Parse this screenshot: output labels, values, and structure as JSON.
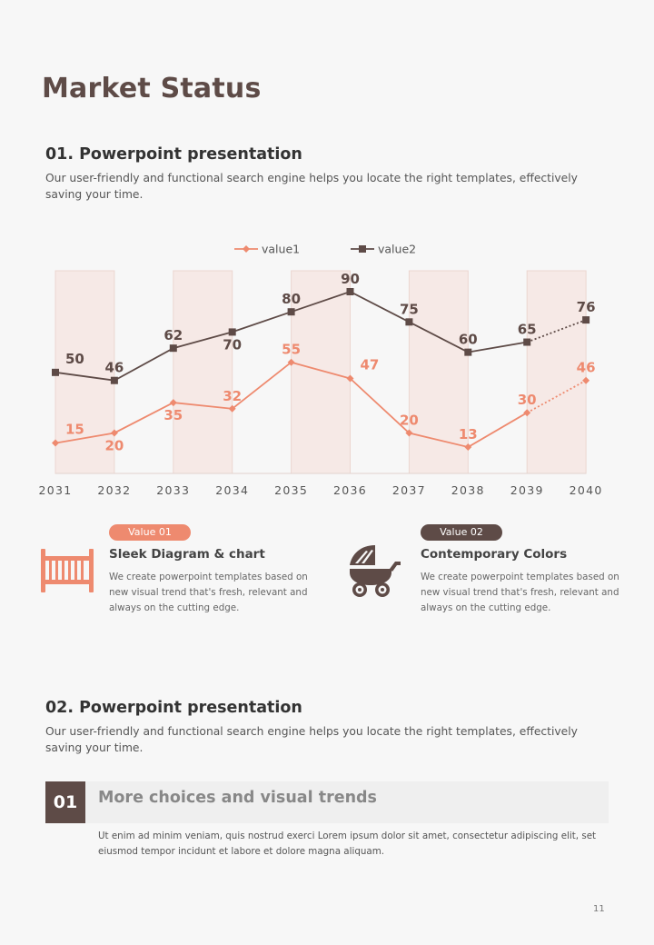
{
  "page": {
    "title": "Market Status",
    "number": "11"
  },
  "section1": {
    "title": "01. Powerpoint  presentation",
    "desc": "Our user-friendly  and functional search engine helps you locate the right templates,  effectively saving your time."
  },
  "chart_data": {
    "type": "line",
    "x": [
      "2031",
      "2032",
      "2033",
      "2034",
      "2035",
      "2036",
      "2037",
      "2038",
      "2039",
      "2040"
    ],
    "series": [
      {
        "name": "value1",
        "values": [
          15,
          20,
          35,
          32,
          55,
          47,
          20,
          13,
          30,
          46
        ],
        "color": "#ee8a6f",
        "last_segment_dotted": true
      },
      {
        "name": "value2",
        "values": [
          50,
          46,
          62,
          70,
          80,
          90,
          75,
          60,
          65,
          76
        ],
        "color": "#5e4b47",
        "last_segment_dotted": true
      }
    ],
    "legend": "top-center",
    "shaded_columns": [
      [
        2031,
        2032
      ],
      [
        2033,
        2034
      ],
      [
        2035,
        2036
      ],
      [
        2037,
        2038
      ],
      [
        2039,
        2040
      ]
    ],
    "grid": false
  },
  "cards": [
    {
      "pill": "Value 01",
      "pill_color": "#ee8a6f",
      "icon": "crib-icon",
      "title": "Sleek Diagram & chart",
      "text": "We create powerpoint templates based on new visual trend that's fresh, relevant and always on the cutting edge."
    },
    {
      "pill": "Value 02",
      "pill_color": "#5e4b47",
      "icon": "baby-stroller-icon",
      "title": "Contemporary Colors",
      "text": "We create powerpoint templates based on new visual trend that's fresh, relevant and always on the cutting edge."
    }
  ],
  "section2": {
    "title": "02. Powerpoint  presentation",
    "desc": "Our user-friendly  and functional search engine helps you locate the right templates,  effectively saving your time."
  },
  "feature": {
    "number": "01",
    "title": "More choices and visual trends",
    "text": "Ut enim ad minim veniam, quis nostrud exerci Lorem ipsum dolor sit amet, consectetur adipiscing elit, set eiusmod tempor incidunt et labore et dolore magna aliquam."
  }
}
